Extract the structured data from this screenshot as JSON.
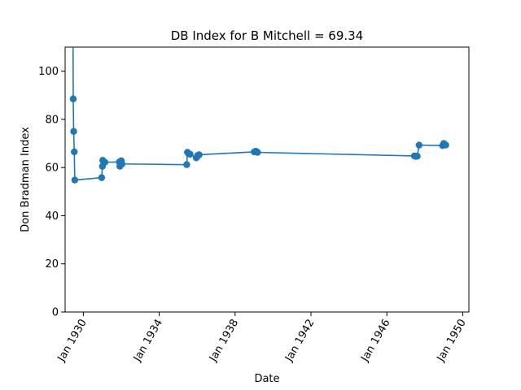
{
  "chart_data": {
    "type": "line",
    "title": "DB Index for B Mitchell = 69.34",
    "xlabel": "Date",
    "ylabel": "Don Bradman Index",
    "ylim": [
      0,
      110
    ],
    "xlim": [
      "1929-01-15",
      "1950-05-01"
    ],
    "y_ticks": [
      0,
      20,
      40,
      60,
      80,
      100
    ],
    "x_ticks": [
      {
        "date": "1930-01-01",
        "label": "Jan 1930"
      },
      {
        "date": "1934-01-01",
        "label": "Jan 1934"
      },
      {
        "date": "1938-01-01",
        "label": "Jan 1938"
      },
      {
        "date": "1942-01-01",
        "label": "Jan 1942"
      },
      {
        "date": "1946-01-01",
        "label": "Jan 1946"
      },
      {
        "date": "1950-01-01",
        "label": "Jan 1950"
      }
    ],
    "color": "#1f77b4",
    "grid": false,
    "series": [
      {
        "points": [
          {
            "x": "1929-06-15",
            "y": 130
          },
          {
            "x": "1929-06-20",
            "y": 88.5
          },
          {
            "x": "1929-06-29",
            "y": 75
          },
          {
            "x": "1929-07-10",
            "y": 66.5
          },
          {
            "x": "1929-07-20",
            "y": 54.8
          },
          {
            "x": "1930-12-20",
            "y": 55.8
          },
          {
            "x": "1931-01-03",
            "y": 60.5
          },
          {
            "x": "1931-01-10",
            "y": 63
          },
          {
            "x": "1931-01-25",
            "y": 62.5
          },
          {
            "x": "1931-02-20",
            "y": 62.2
          },
          {
            "x": "1931-11-25",
            "y": 62.3
          },
          {
            "x": "1931-12-05",
            "y": 60.5
          },
          {
            "x": "1931-12-20",
            "y": 61.5
          },
          {
            "x": "1932-01-02",
            "y": 62.8
          },
          {
            "x": "1932-01-15",
            "y": 61.5
          },
          {
            "x": "1935-06-15",
            "y": 61.2
          },
          {
            "x": "1935-06-29",
            "y": 66.3
          },
          {
            "x": "1935-07-20",
            "y": 65.8
          },
          {
            "x": "1935-08-20",
            "y": 65.5
          },
          {
            "x": "1935-12-15",
            "y": 64
          },
          {
            "x": "1936-01-01",
            "y": 64.5
          },
          {
            "x": "1936-01-10",
            "y": 65
          },
          {
            "x": "1936-02-10",
            "y": 65.3
          },
          {
            "x": "1939-01-05",
            "y": 66.5
          },
          {
            "x": "1939-02-05",
            "y": 66.8
          },
          {
            "x": "1939-03-10",
            "y": 66.3
          },
          {
            "x": "1947-06-15",
            "y": 64.8
          },
          {
            "x": "1947-07-10",
            "y": 64.6
          },
          {
            "x": "1947-08-10",
            "y": 64.7
          },
          {
            "x": "1947-09-15",
            "y": 69.3
          },
          {
            "x": "1948-12-10",
            "y": 69.1
          },
          {
            "x": "1949-01-02",
            "y": 70
          },
          {
            "x": "1949-01-20",
            "y": 69.5
          },
          {
            "x": "1949-02-10",
            "y": 69.34
          }
        ]
      }
    ]
  }
}
